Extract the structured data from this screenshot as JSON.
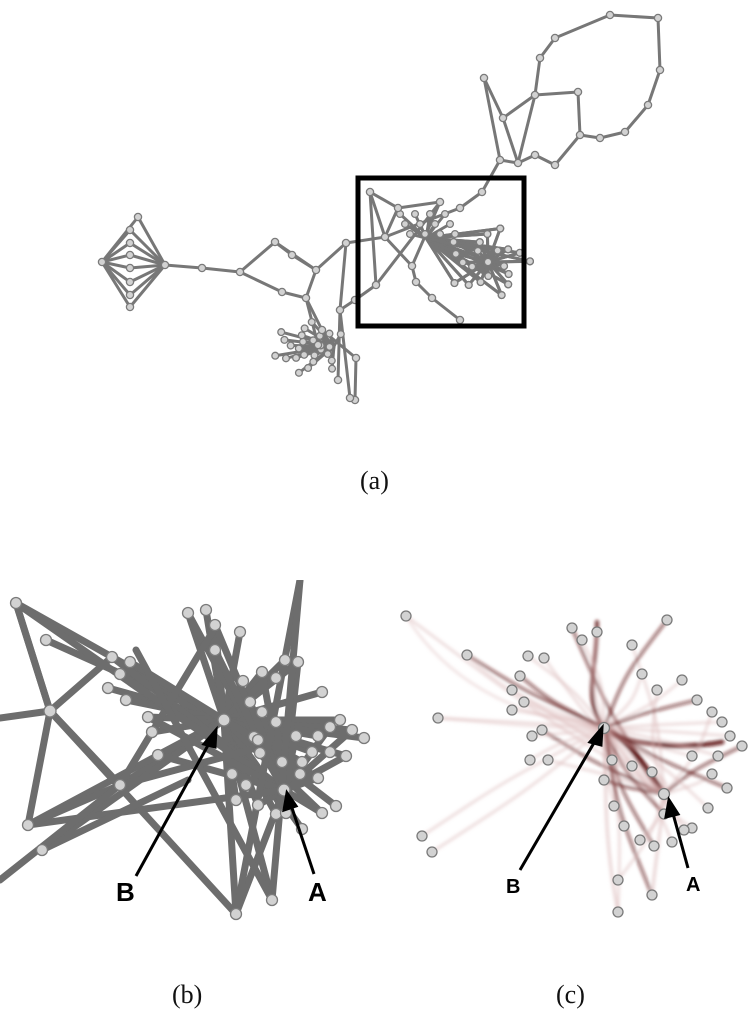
{
  "captions": {
    "a": "(a)",
    "b": "(b)",
    "c": "(c)"
  },
  "callouts": {
    "b": {
      "label_a": "A",
      "label_b": "B"
    },
    "c": {
      "label_a": "A",
      "label_b": "B"
    }
  },
  "colors": {
    "edge_gray": "#777777",
    "edge_dark": "#606060",
    "node_fill": "#d2d2d2",
    "node_stroke": "#7a7a7a",
    "bundle_dark": "#5e1010",
    "bundle_light": "#d9b5b5",
    "highlight_box": "#000000"
  },
  "overview_figure": {
    "highlight_box_visible": true
  }
}
